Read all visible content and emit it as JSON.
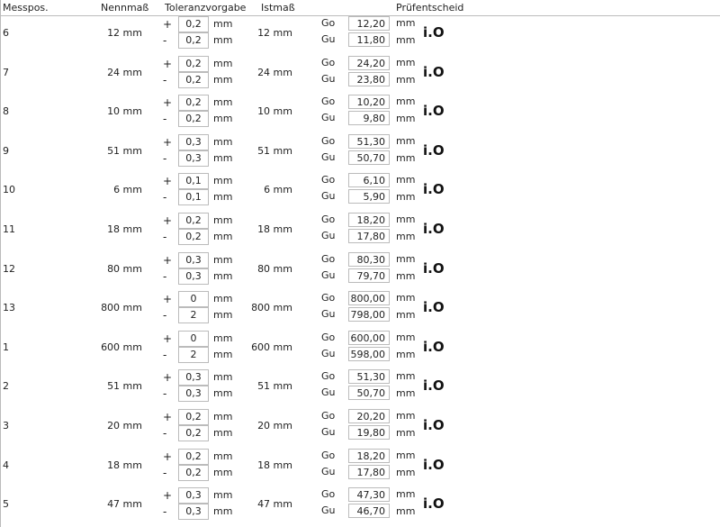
{
  "headers": {
    "pos": "Messpos.",
    "nenn": "Nennmaß",
    "tol": "Toleranzvorgabe",
    "ist": "Istmaß",
    "result": "Prüfentscheid"
  },
  "labels": {
    "plus": "+",
    "minus": "-",
    "unit": "mm",
    "go": "Go",
    "gu": "Gu"
  },
  "rows": [
    {
      "pos": "6",
      "nenn": "12 mm",
      "tp": "0,2",
      "tm": "0,2",
      "ist": "12 mm",
      "go": "12,20",
      "gu": "11,80",
      "res": "i.O"
    },
    {
      "pos": "7",
      "nenn": "24 mm",
      "tp": "0,2",
      "tm": "0,2",
      "ist": "24 mm",
      "go": "24,20",
      "gu": "23,80",
      "res": "i.O"
    },
    {
      "pos": "8",
      "nenn": "10 mm",
      "tp": "0,2",
      "tm": "0,2",
      "ist": "10 mm",
      "go": "10,20",
      "gu": "9,80",
      "res": "i.O"
    },
    {
      "pos": "9",
      "nenn": "51 mm",
      "tp": "0,3",
      "tm": "0,3",
      "ist": "51 mm",
      "go": "51,30",
      "gu": "50,70",
      "res": "i.O"
    },
    {
      "pos": "10",
      "nenn": "6 mm",
      "tp": "0,1",
      "tm": "0,1",
      "ist": "6 mm",
      "go": "6,10",
      "gu": "5,90",
      "res": "i.O"
    },
    {
      "pos": "11",
      "nenn": "18 mm",
      "tp": "0,2",
      "tm": "0,2",
      "ist": "18 mm",
      "go": "18,20",
      "gu": "17,80",
      "res": "i.O"
    },
    {
      "pos": "12",
      "nenn": "80 mm",
      "tp": "0,3",
      "tm": "0,3",
      "ist": "80 mm",
      "go": "80,30",
      "gu": "79,70",
      "res": "i.O"
    },
    {
      "pos": "13",
      "nenn": "800 mm",
      "tp": "0",
      "tm": "2",
      "ist": "800 mm",
      "go": "800,00",
      "gu": "798,00",
      "res": "i.O"
    },
    {
      "pos": "1",
      "nenn": "600 mm",
      "tp": "0",
      "tm": "2",
      "ist": "600 mm",
      "go": "600,00",
      "gu": "598,00",
      "res": "i.O"
    },
    {
      "pos": "2",
      "nenn": "51 mm",
      "tp": "0,3",
      "tm": "0,3",
      "ist": "51 mm",
      "go": "51,30",
      "gu": "50,70",
      "res": "i.O"
    },
    {
      "pos": "3",
      "nenn": "20 mm",
      "tp": "0,2",
      "tm": "0,2",
      "ist": "20 mm",
      "go": "20,20",
      "gu": "19,80",
      "res": "i.O"
    },
    {
      "pos": "4",
      "nenn": "18 mm",
      "tp": "0,2",
      "tm": "0,2",
      "ist": "18 mm",
      "go": "18,20",
      "gu": "17,80",
      "res": "i.O"
    },
    {
      "pos": "5",
      "nenn": "47 mm",
      "tp": "0,3",
      "tm": "0,3",
      "ist": "47 mm",
      "go": "47,30",
      "gu": "46,70",
      "res": "i.O"
    }
  ]
}
